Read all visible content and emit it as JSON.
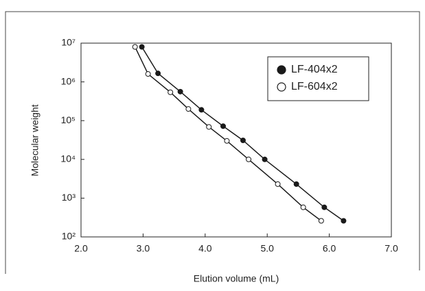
{
  "chart_data": {
    "type": "line",
    "x_label": "Elution volume (mL)",
    "y_label": "Molecular weight",
    "log_scale": "y",
    "legend": "upper right",
    "xlim": [
      2.0,
      7.0
    ],
    "xticks": [
      {
        "value": 2,
        "label": "2.0"
      },
      {
        "value": 3,
        "label": "3.0"
      },
      {
        "value": 4,
        "label": "4.0"
      },
      {
        "value": 5,
        "label": "5.0"
      },
      {
        "value": 6,
        "label": "6.0"
      },
      {
        "value": 7,
        "label": "7.0"
      }
    ],
    "ylim": [
      100,
      10000000
    ],
    "yticks": [
      {
        "value": 100,
        "label": "10²"
      },
      {
        "value": 1000,
        "label": "10³"
      },
      {
        "value": 10000,
        "label": "10⁴"
      },
      {
        "value": 100000,
        "label": "10⁵"
      },
      {
        "value": 1000000,
        "label": "10⁶"
      },
      {
        "value": 10000000,
        "label": "10⁷"
      }
    ],
    "series": [
      {
        "name": "LF-404x2",
        "color": "#1a1a1a",
        "marker": "filled",
        "x": [
          2.98,
          3.24,
          3.6,
          3.94,
          4.29,
          4.61,
          4.96,
          5.47,
          5.92,
          6.23
        ],
        "values": [
          8000000,
          1660000,
          560000,
          190000,
          72000,
          31000,
          10000,
          2300,
          580,
          260
        ]
      },
      {
        "name": "LF-604x2",
        "color": "#1a1a1a",
        "marker": "open",
        "x": [
          2.87,
          3.08,
          3.44,
          3.73,
          4.06,
          4.35,
          4.7,
          5.17,
          5.58,
          5.87
        ],
        "values": [
          8000000,
          1600000,
          540000,
          200000,
          69000,
          30000,
          10000,
          2300,
          580,
          260
        ]
      }
    ]
  }
}
